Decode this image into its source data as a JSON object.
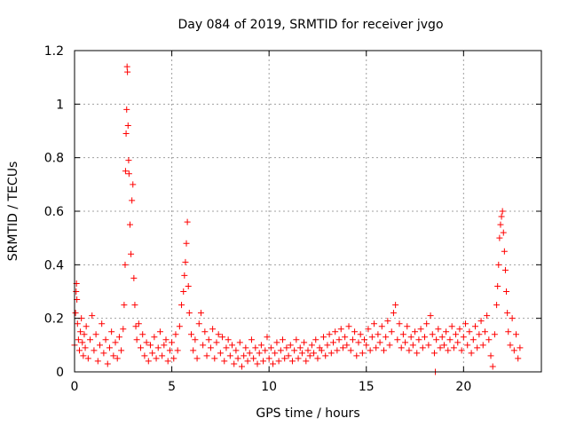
{
  "chart_data": {
    "type": "scatter",
    "title": "Day 084 of 2019, SRMTID for receiver jvgo",
    "xlabel": "GPS time / hours",
    "ylabel": "SRMTID / TECUs",
    "xlim": [
      0,
      24
    ],
    "ylim": [
      0,
      1.2
    ],
    "xticks": [
      0,
      5,
      10,
      15,
      20
    ],
    "xtick_labels": [
      "0",
      "5",
      "10",
      "15",
      "20"
    ],
    "yticks": [
      0,
      0.2,
      0.4,
      0.6,
      0.8,
      1.0,
      1.2
    ],
    "ytick_labels": [
      "0",
      "0.2",
      "0.4",
      "0.6",
      "0.8",
      "1",
      "1.2"
    ],
    "grid": true,
    "marker": "+",
    "color": "#ff0000",
    "series": [
      {
        "name": "SRMTID",
        "points": [
          [
            0.0,
            0.1
          ],
          [
            0.05,
            0.22
          ],
          [
            0.08,
            0.3
          ],
          [
            0.1,
            0.33
          ],
          [
            0.12,
            0.27
          ],
          [
            0.15,
            0.18
          ],
          [
            0.2,
            0.12
          ],
          [
            0.25,
            0.08
          ],
          [
            0.3,
            0.15
          ],
          [
            0.35,
            0.2
          ],
          [
            0.4,
            0.11
          ],
          [
            0.45,
            0.06
          ],
          [
            0.5,
            0.14
          ],
          [
            0.55,
            0.09
          ],
          [
            0.6,
            0.17
          ],
          [
            0.7,
            0.05
          ],
          [
            0.8,
            0.12
          ],
          [
            0.9,
            0.21
          ],
          [
            1.0,
            0.08
          ],
          [
            1.1,
            0.14
          ],
          [
            1.2,
            0.04
          ],
          [
            1.3,
            0.1
          ],
          [
            1.4,
            0.18
          ],
          [
            1.5,
            0.07
          ],
          [
            1.6,
            0.12
          ],
          [
            1.7,
            0.03
          ],
          [
            1.8,
            0.09
          ],
          [
            1.9,
            0.15
          ],
          [
            2.0,
            0.06
          ],
          [
            2.1,
            0.11
          ],
          [
            2.2,
            0.05
          ],
          [
            2.3,
            0.13
          ],
          [
            2.4,
            0.08
          ],
          [
            2.5,
            0.16
          ],
          [
            2.55,
            0.25
          ],
          [
            2.6,
            0.4
          ],
          [
            2.62,
            0.75
          ],
          [
            2.65,
            0.89
          ],
          [
            2.68,
            0.98
          ],
          [
            2.7,
            1.14
          ],
          [
            2.72,
            1.12
          ],
          [
            2.75,
            0.92
          ],
          [
            2.78,
            0.79
          ],
          [
            2.8,
            0.74
          ],
          [
            2.85,
            0.55
          ],
          [
            2.9,
            0.44
          ],
          [
            2.95,
            0.64
          ],
          [
            3.0,
            0.7
          ],
          [
            3.05,
            0.35
          ],
          [
            3.1,
            0.25
          ],
          [
            3.15,
            0.17
          ],
          [
            3.2,
            0.12
          ],
          [
            3.3,
            0.18
          ],
          [
            3.4,
            0.09
          ],
          [
            3.5,
            0.14
          ],
          [
            3.6,
            0.06
          ],
          [
            3.7,
            0.11
          ],
          [
            3.8,
            0.04
          ],
          [
            3.9,
            0.1
          ],
          [
            4.0,
            0.07
          ],
          [
            4.1,
            0.13
          ],
          [
            4.2,
            0.05
          ],
          [
            4.3,
            0.09
          ],
          [
            4.4,
            0.15
          ],
          [
            4.5,
            0.06
          ],
          [
            4.6,
            0.1
          ],
          [
            4.7,
            0.12
          ],
          [
            4.8,
            0.04
          ],
          [
            4.9,
            0.08
          ],
          [
            5.0,
            0.11
          ],
          [
            5.1,
            0.05
          ],
          [
            5.2,
            0.14
          ],
          [
            5.3,
            0.08
          ],
          [
            5.4,
            0.17
          ],
          [
            5.5,
            0.25
          ],
          [
            5.6,
            0.3
          ],
          [
            5.65,
            0.36
          ],
          [
            5.7,
            0.41
          ],
          [
            5.75,
            0.48
          ],
          [
            5.8,
            0.56
          ],
          [
            5.85,
            0.32
          ],
          [
            5.9,
            0.22
          ],
          [
            6.0,
            0.14
          ],
          [
            6.1,
            0.08
          ],
          [
            6.2,
            0.12
          ],
          [
            6.3,
            0.05
          ],
          [
            6.4,
            0.18
          ],
          [
            6.5,
            0.22
          ],
          [
            6.6,
            0.1
          ],
          [
            6.7,
            0.15
          ],
          [
            6.8,
            0.06
          ],
          [
            6.9,
            0.12
          ],
          [
            7.0,
            0.09
          ],
          [
            7.1,
            0.16
          ],
          [
            7.2,
            0.05
          ],
          [
            7.3,
            0.11
          ],
          [
            7.4,
            0.14
          ],
          [
            7.5,
            0.07
          ],
          [
            7.6,
            0.13
          ],
          [
            7.7,
            0.04
          ],
          [
            7.8,
            0.09
          ],
          [
            7.9,
            0.12
          ],
          [
            8.0,
            0.06
          ],
          [
            8.1,
            0.1
          ],
          [
            8.2,
            0.03
          ],
          [
            8.3,
            0.08
          ],
          [
            8.4,
            0.05
          ],
          [
            8.5,
            0.11
          ],
          [
            8.6,
            0.02
          ],
          [
            8.7,
            0.06
          ],
          [
            8.8,
            0.09
          ],
          [
            8.9,
            0.04
          ],
          [
            9.0,
            0.07
          ],
          [
            9.1,
            0.12
          ],
          [
            9.2,
            0.05
          ],
          [
            9.3,
            0.09
          ],
          [
            9.4,
            0.03
          ],
          [
            9.5,
            0.07
          ],
          [
            9.6,
            0.1
          ],
          [
            9.7,
            0.04
          ],
          [
            9.8,
            0.08
          ],
          [
            9.9,
            0.13
          ],
          [
            10.0,
            0.05
          ],
          [
            10.1,
            0.09
          ],
          [
            10.2,
            0.03
          ],
          [
            10.3,
            0.07
          ],
          [
            10.4,
            0.11
          ],
          [
            10.5,
            0.04
          ],
          [
            10.6,
            0.08
          ],
          [
            10.7,
            0.12
          ],
          [
            10.8,
            0.05
          ],
          [
            10.9,
            0.09
          ],
          [
            11.0,
            0.06
          ],
          [
            11.1,
            0.1
          ],
          [
            11.2,
            0.04
          ],
          [
            11.3,
            0.08
          ],
          [
            11.4,
            0.12
          ],
          [
            11.5,
            0.05
          ],
          [
            11.6,
            0.09
          ],
          [
            11.7,
            0.07
          ],
          [
            11.8,
            0.11
          ],
          [
            11.9,
            0.04
          ],
          [
            12.0,
            0.08
          ],
          [
            12.1,
            0.06
          ],
          [
            12.2,
            0.1
          ],
          [
            12.3,
            0.07
          ],
          [
            12.4,
            0.12
          ],
          [
            12.5,
            0.05
          ],
          [
            12.6,
            0.09
          ],
          [
            12.7,
            0.08
          ],
          [
            12.8,
            0.13
          ],
          [
            12.9,
            0.06
          ],
          [
            13.0,
            0.1
          ],
          [
            13.1,
            0.14
          ],
          [
            13.2,
            0.07
          ],
          [
            13.3,
            0.11
          ],
          [
            13.4,
            0.15
          ],
          [
            13.5,
            0.08
          ],
          [
            13.6,
            0.12
          ],
          [
            13.7,
            0.16
          ],
          [
            13.8,
            0.09
          ],
          [
            13.9,
            0.13
          ],
          [
            14.0,
            0.1
          ],
          [
            14.1,
            0.17
          ],
          [
            14.2,
            0.08
          ],
          [
            14.3,
            0.12
          ],
          [
            14.4,
            0.15
          ],
          [
            14.5,
            0.06
          ],
          [
            14.6,
            0.11
          ],
          [
            14.7,
            0.14
          ],
          [
            14.8,
            0.07
          ],
          [
            14.9,
            0.12
          ],
          [
            15.0,
            0.1
          ],
          [
            15.1,
            0.16
          ],
          [
            15.2,
            0.08
          ],
          [
            15.3,
            0.13
          ],
          [
            15.4,
            0.18
          ],
          [
            15.5,
            0.09
          ],
          [
            15.6,
            0.14
          ],
          [
            15.7,
            0.11
          ],
          [
            15.8,
            0.17
          ],
          [
            15.9,
            0.08
          ],
          [
            16.0,
            0.13
          ],
          [
            16.1,
            0.19
          ],
          [
            16.2,
            0.1
          ],
          [
            16.3,
            0.15
          ],
          [
            16.4,
            0.22
          ],
          [
            16.5,
            0.25
          ],
          [
            16.6,
            0.12
          ],
          [
            16.7,
            0.18
          ],
          [
            16.8,
            0.09
          ],
          [
            16.9,
            0.14
          ],
          [
            17.0,
            0.11
          ],
          [
            17.1,
            0.17
          ],
          [
            17.2,
            0.08
          ],
          [
            17.3,
            0.13
          ],
          [
            17.4,
            0.1
          ],
          [
            17.5,
            0.15
          ],
          [
            17.6,
            0.07
          ],
          [
            17.7,
            0.12
          ],
          [
            17.8,
            0.16
          ],
          [
            17.9,
            0.09
          ],
          [
            18.0,
            0.13
          ],
          [
            18.1,
            0.18
          ],
          [
            18.2,
            0.1
          ],
          [
            18.3,
            0.21
          ],
          [
            18.4,
            0.14
          ],
          [
            18.5,
            0.07
          ],
          [
            18.55,
            0.0
          ],
          [
            18.6,
            0.12
          ],
          [
            18.7,
            0.16
          ],
          [
            18.8,
            0.09
          ],
          [
            18.9,
            0.13
          ],
          [
            19.0,
            0.1
          ],
          [
            19.1,
            0.15
          ],
          [
            19.2,
            0.08
          ],
          [
            19.3,
            0.12
          ],
          [
            19.4,
            0.17
          ],
          [
            19.5,
            0.09
          ],
          [
            19.6,
            0.14
          ],
          [
            19.7,
            0.11
          ],
          [
            19.8,
            0.16
          ],
          [
            19.9,
            0.08
          ],
          [
            20.0,
            0.13
          ],
          [
            20.1,
            0.18
          ],
          [
            20.2,
            0.1
          ],
          [
            20.3,
            0.15
          ],
          [
            20.4,
            0.07
          ],
          [
            20.5,
            0.12
          ],
          [
            20.6,
            0.17
          ],
          [
            20.7,
            0.09
          ],
          [
            20.8,
            0.14
          ],
          [
            20.9,
            0.19
          ],
          [
            21.0,
            0.1
          ],
          [
            21.1,
            0.15
          ],
          [
            21.2,
            0.21
          ],
          [
            21.3,
            0.12
          ],
          [
            21.4,
            0.06
          ],
          [
            21.5,
            0.02
          ],
          [
            21.6,
            0.14
          ],
          [
            21.7,
            0.25
          ],
          [
            21.75,
            0.32
          ],
          [
            21.8,
            0.4
          ],
          [
            21.85,
            0.5
          ],
          [
            21.9,
            0.55
          ],
          [
            21.95,
            0.58
          ],
          [
            22.0,
            0.6
          ],
          [
            22.05,
            0.52
          ],
          [
            22.1,
            0.45
          ],
          [
            22.15,
            0.38
          ],
          [
            22.2,
            0.3
          ],
          [
            22.25,
            0.22
          ],
          [
            22.3,
            0.15
          ],
          [
            22.4,
            0.1
          ],
          [
            22.5,
            0.2
          ],
          [
            22.6,
            0.08
          ],
          [
            22.7,
            0.14
          ],
          [
            22.8,
            0.05
          ],
          [
            22.9,
            0.09
          ]
        ]
      }
    ]
  }
}
